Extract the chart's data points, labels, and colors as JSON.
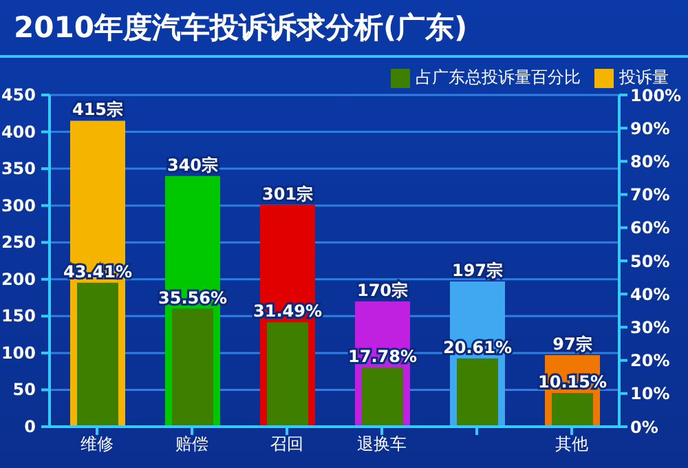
{
  "chart_data": {
    "type": "bar",
    "title": "2010年度汽车投诉诉求分析(广东)",
    "categories": [
      "维修",
      "赔偿",
      "召回",
      "退换车",
      null,
      "其他"
    ],
    "series": [
      {
        "name": "投诉量",
        "color": "#f5b400",
        "colors": [
          "#f5b400",
          "#00c800",
          "#e00000",
          "#c020e0",
          "#40a8f0",
          "#f07800"
        ],
        "values": [
          415,
          340,
          301,
          170,
          197,
          97
        ],
        "value_labels": [
          "415宗",
          "340宗",
          "301宗",
          "170宗",
          "197宗",
          "97宗"
        ]
      },
      {
        "name": "占广东总投诉量百分比",
        "color": "#3f7f00",
        "axis": "y2",
        "values": [
          43.41,
          35.56,
          31.49,
          17.78,
          20.61,
          10.15
        ],
        "value_labels": [
          "43.41%",
          "35.56%",
          "31.49%",
          "17.78%",
          "20.61%",
          "10.15%"
        ]
      }
    ],
    "ylim": [
      0,
      450
    ],
    "yticks": [
      0,
      50,
      100,
      150,
      200,
      250,
      300,
      350,
      400,
      450
    ],
    "y2lim": [
      0,
      100
    ],
    "y2ticks": [
      {
        "value": 0,
        "label": "0%"
      },
      {
        "value": 10,
        "label": "10%"
      },
      {
        "value": 20,
        "label": "20%"
      },
      {
        "value": 30,
        "label": "30%"
      },
      {
        "value": 40,
        "label": "40%"
      },
      {
        "value": 50,
        "label": "50%"
      },
      {
        "value": 60,
        "label": "60%"
      },
      {
        "value": 70,
        "label": "70%"
      },
      {
        "value": 80,
        "label": "80%"
      },
      {
        "value": 90,
        "label": "90%"
      },
      {
        "value": 100,
        "label": "100%"
      }
    ],
    "grid": "y",
    "legend": "top right"
  }
}
